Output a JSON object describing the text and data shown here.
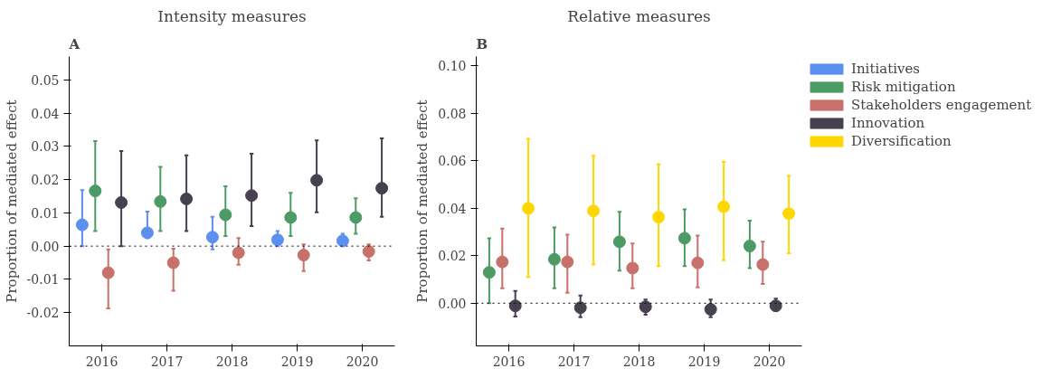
{
  "chart_data": [
    {
      "type": "scatter",
      "title": "Intensity measures",
      "annotations": [
        "A"
      ],
      "ylabel": "Proportion of mediated effect",
      "categories": [
        "2016",
        "2017",
        "2018",
        "2019",
        "2020"
      ],
      "ylim": [
        -0.03,
        0.057
      ],
      "yticks": [
        {
          "value": -0.02,
          "label": "-0.02"
        },
        {
          "value": -0.01,
          "label": "-0.01"
        },
        {
          "value": 0,
          "label": "0.00"
        },
        {
          "value": 0.01,
          "label": "0.01"
        },
        {
          "value": 0.02,
          "label": "0.02"
        },
        {
          "value": 0.03,
          "label": "0.03"
        },
        {
          "value": 0.04,
          "label": "0.04"
        },
        {
          "value": 0.05,
          "label": "0.05"
        }
      ],
      "grid": false,
      "legend": false,
      "marker": "circle",
      "ref_lines": [
        {
          "axis": "y",
          "value": 0,
          "line_style": "dotted",
          "color": "#000000"
        }
      ],
      "series": [
        {
          "color": "#5b8ff0",
          "values": [
            0.0064,
            0.004,
            0.0027,
            0.0019,
            0.0016
          ],
          "errors": [
            [
              0.0,
              0.0168
            ],
            [
              0.0024,
              0.0104
            ],
            [
              -0.001,
              0.0088
            ],
            [
              0.0,
              0.0045
            ],
            [
              0.0,
              0.0037
            ]
          ]
        },
        {
          "color": "#4c9a64",
          "values": [
            0.0166,
            0.0134,
            0.0094,
            0.0086,
            0.0086
          ],
          "errors": [
            [
              0.0045,
              0.0316
            ],
            [
              0.0045,
              0.0238
            ],
            [
              0.003,
              0.018
            ],
            [
              0.003,
              0.016
            ],
            [
              0.0037,
              0.0144
            ]
          ]
        },
        {
          "color": "#c8716a",
          "values": [
            -0.008,
            -0.005,
            -0.002,
            -0.0027,
            -0.0016
          ],
          "errors": [
            [
              -0.0187,
              -0.001
            ],
            [
              -0.0134,
              -0.0008
            ],
            [
              -0.0056,
              0.0024
            ],
            [
              -0.0075,
              0.0005
            ],
            [
              -0.0043,
              0.0005
            ]
          ]
        },
        {
          "color": "#46404f",
          "values": [
            0.0131,
            0.0142,
            0.0152,
            0.0198,
            0.0174
          ],
          "errors": [
            [
              0.0,
              0.0286
            ],
            [
              0.0045,
              0.0273
            ],
            [
              0.006,
              0.0278
            ],
            [
              0.0102,
              0.0318
            ],
            [
              0.0088,
              0.0324
            ]
          ]
        }
      ]
    },
    {
      "type": "scatter",
      "title": "Relative measures",
      "annotations": [
        "B"
      ],
      "ylabel": "Proportion of mediated effect",
      "categories": [
        "2016",
        "2017",
        "2018",
        "2019",
        "2020"
      ],
      "ylim": [
        -0.018,
        0.104
      ],
      "yticks": [
        {
          "value": 0,
          "label": "0.00"
        },
        {
          "value": 0.02,
          "label": "0.02"
        },
        {
          "value": 0.04,
          "label": "0.04"
        },
        {
          "value": 0.06,
          "label": "0.06"
        },
        {
          "value": 0.08,
          "label": "0.08"
        },
        {
          "value": 0.1,
          "label": "0.10"
        }
      ],
      "grid": false,
      "legend": "right",
      "marker": "circle",
      "ref_lines": [
        {
          "axis": "y",
          "value": 0,
          "line_style": "dotted",
          "color": "#000000"
        }
      ],
      "series": [
        {
          "name": "Initiatives",
          "color": "#5b8ff0",
          "values": [
            null,
            null,
            null,
            null,
            null
          ]
        },
        {
          "name": "Risk mitigation",
          "color": "#4c9a64",
          "values": [
            0.013,
            0.0185,
            0.0259,
            0.0274,
            0.0241
          ],
          "errors": [
            [
              0.0,
              0.0274
            ],
            [
              0.0063,
              0.0319
            ],
            [
              0.0137,
              0.0385
            ],
            [
              0.0156,
              0.0396
            ],
            [
              0.0148,
              0.0348
            ]
          ]
        },
        {
          "name": "Stakeholders engagement",
          "color": "#c8716a",
          "values": [
            0.0174,
            0.0174,
            0.0148,
            0.017,
            0.0163
          ],
          "errors": [
            [
              0.0063,
              0.0315
            ],
            [
              0.0044,
              0.0289
            ],
            [
              0.0063,
              0.0252
            ],
            [
              0.0067,
              0.0285
            ],
            [
              0.0081,
              0.0259
            ]
          ]
        },
        {
          "name": "Innovation",
          "color": "#46404f",
          "values": [
            -0.0011,
            -0.0019,
            -0.0015,
            -0.0026,
            -0.0011
          ],
          "errors": [
            [
              -0.0056,
              0.0052
            ],
            [
              -0.0059,
              0.0033
            ],
            [
              -0.0048,
              0.0015
            ],
            [
              -0.0059,
              0.0015
            ],
            [
              -0.0033,
              0.0019
            ]
          ]
        },
        {
          "name": "Diversification",
          "color": "#ffd700",
          "values": [
            0.04,
            0.0389,
            0.0363,
            0.0407,
            0.0378
          ],
          "errors": [
            [
              0.0111,
              0.0693
            ],
            [
              0.0163,
              0.0622
            ],
            [
              0.0156,
              0.0585
            ],
            [
              0.0181,
              0.0596
            ],
            [
              0.0211,
              0.0537
            ]
          ]
        }
      ]
    }
  ]
}
